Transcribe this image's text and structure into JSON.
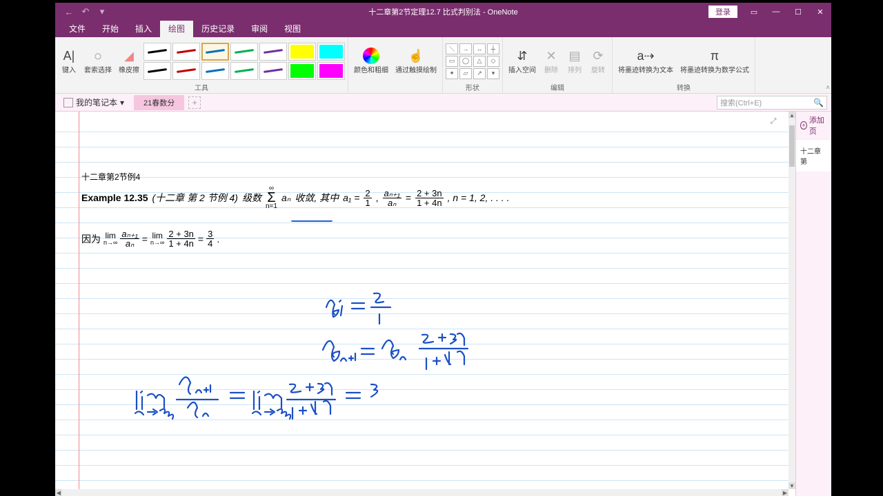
{
  "titlebar": {
    "title": "十二章第2节定理12.7 比式判别法  -  OneNote",
    "login": "登录"
  },
  "menu": {
    "tabs": [
      "文件",
      "开始",
      "插入",
      "绘图",
      "历史记录",
      "审阅",
      "视图"
    ],
    "active_index": 3
  },
  "ribbon": {
    "group_tools": "工具",
    "group_shapes": "形状",
    "group_edit": "编辑",
    "group_convert": "转换",
    "btn_input": "键入",
    "btn_lasso": "套索选择",
    "btn_eraser": "橡皮擦",
    "btn_colorwidth": "颜色和粗细",
    "btn_touchdraw": "通过触摸绘制",
    "btn_insertspace": "插入空间",
    "btn_delete": "删除",
    "btn_arrange": "排列",
    "btn_rotate": "旋转",
    "btn_inktotext": "将墨迹转换为文本",
    "btn_inktomath": "将墨迹转换为数学公式",
    "pens": [
      {
        "color": "#000000",
        "type": "stroke"
      },
      {
        "color": "#c00000",
        "type": "stroke"
      },
      {
        "color": "#0070c0",
        "type": "stroke",
        "selected": true
      },
      {
        "color": "#00b050",
        "type": "stroke"
      },
      {
        "color": "#7030a0",
        "type": "stroke"
      },
      {
        "color": "#ffff00",
        "type": "fill"
      },
      {
        "color": "#00ffff",
        "type": "fill"
      },
      {
        "color": "#000000",
        "type": "stroke"
      },
      {
        "color": "#c00000",
        "type": "stroke"
      },
      {
        "color": "#0070c0",
        "type": "stroke"
      },
      {
        "color": "#00b050",
        "type": "stroke"
      },
      {
        "color": "#7030a0",
        "type": "stroke"
      },
      {
        "color": "#00ff00",
        "type": "fill"
      },
      {
        "color": "#ff00ff",
        "type": "fill"
      }
    ]
  },
  "notebook": {
    "name": "我的笔记本",
    "section": "21春数分",
    "search_placeholder": "搜索(Ctrl+E)"
  },
  "pages_panel": {
    "add_page": "添加页",
    "current_page": "十二章第"
  },
  "note": {
    "heading": "十二章第2节例4",
    "example_label": "Example 12.35",
    "example_paren": "(十二章 第 2 节例 4)",
    "word_series": "级数",
    "word_converge": "收敛, 其中",
    "a1_eq": "a₁ =",
    "a1_num": "2",
    "a1_den": "1",
    "ratio_num": "aₙ₊₁",
    "ratio_den": "aₙ",
    "rhs_num": "2 + 3n",
    "rhs_den": "1 + 4n",
    "tail": ", n = 1, 2, . . . .",
    "because": "因为",
    "lim": "lim",
    "lim_sub": "n→∞",
    "eq": "=",
    "three": "3",
    "four": "4",
    "sigma_top": "∞",
    "sigma_bot": "n=1",
    "sigma_term": "aₙ"
  },
  "ink": {
    "color": "#1a4fc4",
    "stroke_width": 2.2
  }
}
